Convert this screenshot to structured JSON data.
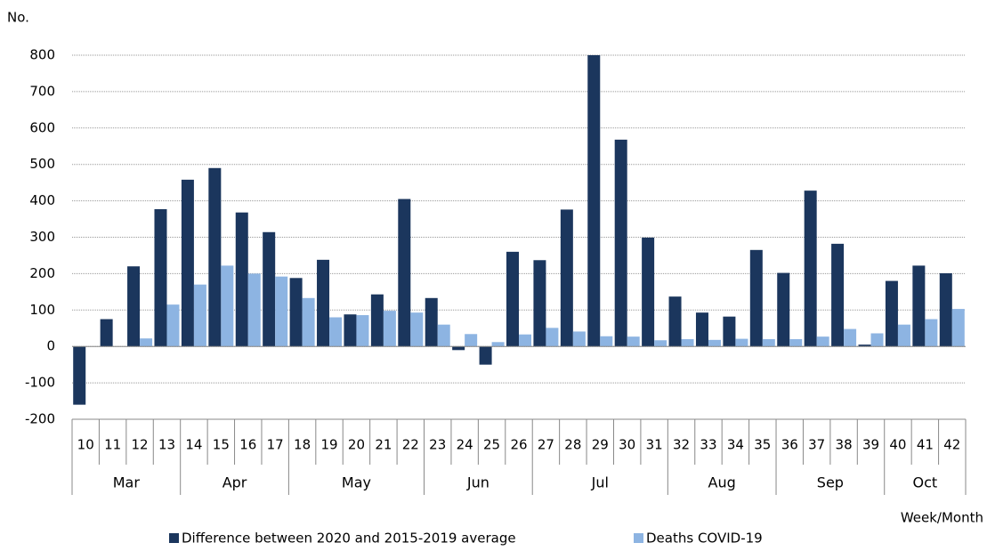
{
  "chart_data": {
    "type": "bar",
    "y_axis_title": "No.",
    "x_axis_title": "Week/Month",
    "categories": [
      "10",
      "11",
      "12",
      "13",
      "14",
      "15",
      "16",
      "17",
      "18",
      "19",
      "20",
      "21",
      "22",
      "23",
      "24",
      "25",
      "26",
      "27",
      "28",
      "29",
      "30",
      "31",
      "32",
      "33",
      "34",
      "35",
      "36",
      "37",
      "38",
      "39",
      "40",
      "41",
      "42"
    ],
    "month_groups": [
      {
        "label": "Mar",
        "size": 4
      },
      {
        "label": "Apr",
        "size": 4
      },
      {
        "label": "May",
        "size": 5
      },
      {
        "label": "Jun",
        "size": 4
      },
      {
        "label": "Jul",
        "size": 5
      },
      {
        "label": "Aug",
        "size": 4
      },
      {
        "label": "Sep",
        "size": 4
      },
      {
        "label": "Oct",
        "size": 3
      }
    ],
    "series": [
      {
        "name": "Difference between 2020 and 2015-2019 average",
        "color": "#1b365d",
        "values": [
          -160,
          75,
          220,
          377,
          458,
          490,
          368,
          314,
          188,
          238,
          88,
          143,
          405,
          133,
          -10,
          -50,
          260,
          237,
          376,
          800,
          568,
          299,
          137,
          93,
          82,
          265,
          202,
          428,
          282,
          5,
          180,
          222,
          201
        ]
      },
      {
        "name": "Deaths COVID-19",
        "color": "#8db4e2",
        "values": [
          0,
          0,
          22,
          115,
          170,
          222,
          200,
          192,
          133,
          80,
          86,
          98,
          93,
          60,
          34,
          12,
          33,
          51,
          41,
          28,
          27,
          17,
          20,
          18,
          21,
          20,
          20,
          27,
          48,
          36,
          60,
          75,
          103
        ]
      }
    ],
    "ylim": [
      -200,
      800
    ],
    "yticks": [
      -200,
      -100,
      0,
      100,
      200,
      300,
      400,
      500,
      600,
      700,
      800
    ],
    "grid": true
  }
}
